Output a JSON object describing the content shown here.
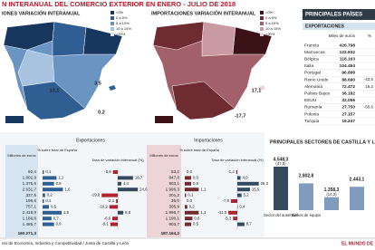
{
  "header": {
    "title": "N INTERANUAL DEL COMERCIO EXTERIOR EN ENERO - JULIO DE 2018",
    "source": "nto de Economía, Industria y Competitividad / Junta de Castilla y León",
    "credit": "EL MUNDO DE"
  },
  "export_map": {
    "title": "IONES VARIACIÓN INTERANUAL",
    "legend": [
      {
        "label": "<0%",
        "color": "#17375e"
      },
      {
        "label": "0 a 5%",
        "color": "#2f5f92"
      },
      {
        "label": "5 a 10%",
        "color": "#6a94c2"
      },
      {
        "label": "10 a 15%",
        "color": "#a8c3df"
      },
      {
        "label": ">20%",
        "color": "#dde8f3"
      }
    ],
    "labels": [
      "3,5",
      "0,2",
      "13,1"
    ]
  },
  "import_map": {
    "title": "IMPORTACIONES VARIACIÓN INTERANUAL",
    "legend": [
      {
        "label": "<0%",
        "color": "#3b1317"
      },
      {
        "label": "0 a 5%",
        "color": "#6e2b31"
      },
      {
        "label": "5 a 10%",
        "color": "#a2606a"
      },
      {
        "label": "10 a 15%",
        "color": "#c99aa1"
      },
      {
        "label": ">20%",
        "color": "#ecd4d7"
      }
    ],
    "labels": [
      "17,1",
      "-17,7"
    ]
  },
  "countries": {
    "title": "PRINCIPALES PAÍSES",
    "section": "EXPORTACIONES",
    "columns": [
      "Miles de euros",
      "%"
    ],
    "rows": [
      {
        "name": "Francia",
        "value": "426.798"
      },
      {
        "name": "Marruecos",
        "value": "122.832"
      },
      {
        "name": "Bélgica",
        "value": "118.163"
      },
      {
        "name": "Italia",
        "value": "104.494"
      },
      {
        "name": "Portugal",
        "value": "96.899"
      },
      {
        "name": "Reino Unido",
        "value": "88.690",
        "pct": "-42,5"
      },
      {
        "name": "Alemania",
        "value": "72.472",
        "pct": "16,2"
      },
      {
        "name": "Países Bajos",
        "value": "36.182"
      },
      {
        "name": "EEUU",
        "value": "32.056"
      },
      {
        "name": "Rumanía",
        "value": "27.750",
        "pct": "-50,6"
      },
      {
        "name": "Polonia",
        "value": "27.157"
      },
      {
        "name": "Turquía",
        "value": "19.247"
      }
    ]
  },
  "provinces": {
    "unit_header": "Millones de euros",
    "pct_header": "% sobre total de España",
    "rate_header": "Tasa de variación interanual (%)",
    "exports": {
      "title": "Exportaciones",
      "amounts": [
        "92,4",
        "1.802,9",
        "1.375,5",
        "2.631,7",
        "337,5",
        "196,6",
        "757,1",
        "2.418,9",
        "1.186,8",
        "1.485,7"
      ],
      "total": "160.271,3",
      "pct": [
        0.1,
        1.1,
        0.9,
        1.6,
        0.2,
        0.1,
        0.5,
        1.5,
        0.7,
        0.9
      ],
      "pct_labels": [
        "0,1",
        "1,1",
        "0,9",
        "1,6",
        "0,2",
        "0,1",
        "0,5",
        "1,5",
        "0,7",
        "0,9"
      ],
      "rate": [
        -5.9,
        18.7,
        4.4,
        24.6,
        -19.8,
        -2.1,
        -10.2,
        6.8,
        -6.6,
        -9.1
      ],
      "rate_labels": [
        "-5,9",
        "18,7",
        "4,4",
        "24,6",
        "-19,8",
        "-2,1",
        "-10,2",
        "6,8",
        "-6,6",
        "-9,1"
      ]
    },
    "imports": {
      "title": "Importaciones",
      "amounts": [
        "53,2",
        "847,0",
        "903,1",
        "1.996,3",
        "201,2",
        "36,0",
        "395,9",
        "1.996,7",
        "1.190,1",
        "903,7"
      ],
      "total": "187.164,2",
      "pct": [
        0.0,
        0.5,
        0.5,
        1.1,
        0.1,
        0.0,
        0.2,
        1.1,
        0.6,
        0.5
      ],
      "pct_labels": [
        "0,0",
        "0,5",
        "0,5",
        "1,1",
        "0,1",
        "0,0",
        "0,2",
        "1,1",
        "0,6",
        "0,5"
      ],
      "rate": [
        -1.4,
        4.0,
        26.3,
        15.5,
        5.2,
        -7.9,
        0.4,
        -11.0,
        -5.3,
        8.7
      ],
      "rate_labels": [
        "-1,4",
        "4,0",
        "26,3",
        "15,5",
        "5,2",
        "-7,9",
        "0,4",
        "-11,0",
        "-5,3",
        "8,7"
      ]
    }
  },
  "chart_data": {
    "type": "bar",
    "title": "PRINCIPALES SECTORES DE CASTILLA Y LEÓN",
    "categories": [
      "Sector del automóvil",
      "Bienes de equipo",
      null,
      null
    ],
    "values": [
      4548.3,
      2802.8,
      1358.3,
      2443.1
    ],
    "value_labels": [
      "4.548,3",
      "2.802,8",
      "1.358,3",
      "2.443,1"
    ],
    "share_labels": [
      "(47,9)",
      null,
      "(14,3)",
      null
    ],
    "colors": [
      "#34495e",
      "#7f9cbf",
      "#7f9cbf",
      "#7f9cbf"
    ]
  }
}
